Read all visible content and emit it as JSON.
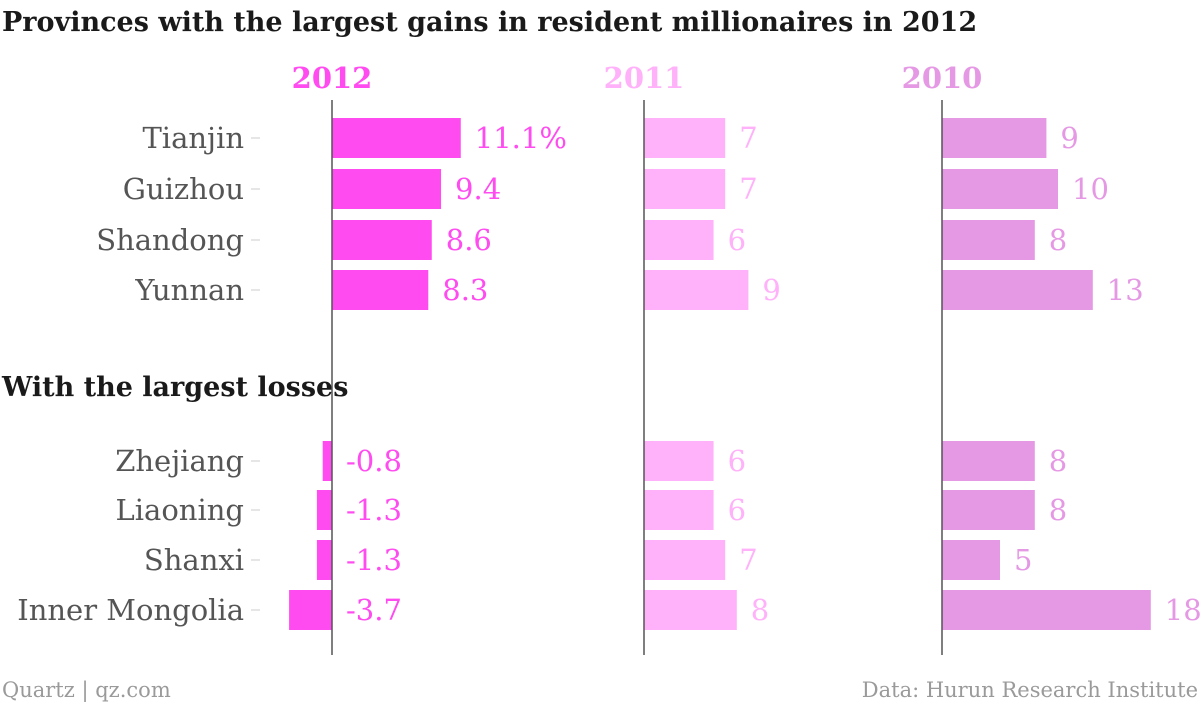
{
  "chart_data": {
    "type": "bar",
    "title": "Provinces with the largest gains in resident millionaires in 2012",
    "section_title": "With the largest losses",
    "groups": [
      {
        "name": "gains",
        "categories": [
          "Tianjin",
          "Guizhou",
          "Shandong",
          "Yunnan"
        ]
      },
      {
        "name": "losses",
        "categories": [
          "Zhejiang",
          "Liaoning",
          "Shanxi",
          "Inner Mongolia"
        ]
      }
    ],
    "categories": [
      "Tianjin",
      "Guizhou",
      "Shandong",
      "Yunnan",
      "Zhejiang",
      "Liaoning",
      "Shanxi",
      "Inner Mongolia"
    ],
    "series": [
      {
        "name": "2012",
        "color": "#ff4bf0",
        "values": [
          11.1,
          9.4,
          8.6,
          8.3,
          -0.8,
          -1.3,
          -1.3,
          -3.7
        ],
        "labels": [
          "11.1%",
          "9.4",
          "8.6",
          "8.3",
          "-0.8",
          "-1.3",
          "-1.3",
          "-3.7"
        ],
        "domain": [
          -4,
          12
        ]
      },
      {
        "name": "2011",
        "color": "#ffb2f9",
        "values": [
          7,
          7,
          6,
          9,
          6,
          6,
          7,
          8
        ],
        "labels": [
          "7",
          "7",
          "6",
          "9",
          "6",
          "6",
          "7",
          "8"
        ],
        "domain": [
          0,
          18
        ]
      },
      {
        "name": "2010",
        "color": "#e599e4",
        "values": [
          9,
          10,
          8,
          13,
          8,
          8,
          5,
          18
        ],
        "labels": [
          "9",
          "10",
          "8",
          "13",
          "8",
          "8",
          "5",
          "18"
        ],
        "domain": [
          0,
          18
        ]
      }
    ],
    "grid": false,
    "legend": "none"
  },
  "footer": {
    "left": "Quartz | qz.com",
    "right": "Data: Hurun Research Institute"
  }
}
